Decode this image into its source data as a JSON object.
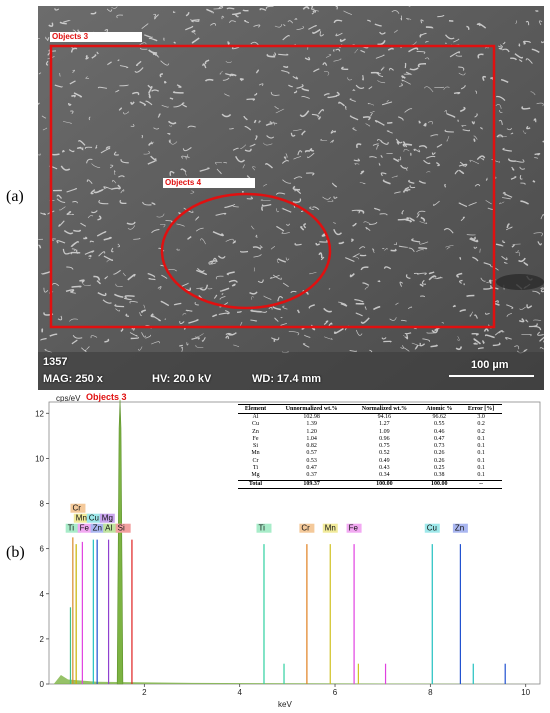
{
  "panel_a": {
    "label": "(a)",
    "regions": [
      {
        "name": "Objects 3",
        "shape": "rectangle"
      },
      {
        "name": "Objects 4",
        "shape": "ellipse"
      }
    ],
    "roi_color": "#e01010",
    "image_id": "1357",
    "mag": "MAG: 250 x",
    "hv": "HV: 20.0 kV",
    "wd": "WD: 17.4 mm",
    "scale_bar": "100 µm"
  },
  "panel_b": {
    "label": "(b)",
    "spectrum_title": "Objects 3",
    "table": {
      "headers": [
        "Element",
        "Unnormalized wt.%",
        "Normalized wt.%",
        "Atomic %",
        "Error [%]"
      ],
      "rows": [
        [
          "Al",
          "102.98",
          "94.16",
          "96.62",
          "3.0"
        ],
        [
          "Cu",
          "1.39",
          "1.27",
          "0.55",
          "0.2"
        ],
        [
          "Zn",
          "1.20",
          "1.09",
          "0.46",
          "0.2"
        ],
        [
          "Fe",
          "1.04",
          "0.96",
          "0.47",
          "0.1"
        ],
        [
          "Si",
          "0.82",
          "0.75",
          "0.73",
          "0.1"
        ],
        [
          "Mn",
          "0.57",
          "0.52",
          "0.26",
          "0.1"
        ],
        [
          "Cr",
          "0.53",
          "0.49",
          "0.26",
          "0.1"
        ],
        [
          "Ti",
          "0.47",
          "0.43",
          "0.25",
          "0.1"
        ],
        [
          "Mg",
          "0.37",
          "0.34",
          "0.38",
          "0.1"
        ]
      ],
      "total": [
        "Total",
        "109.37",
        "100.00",
        "100.00",
        "--"
      ]
    }
  },
  "chart_data": {
    "type": "line",
    "title": "Objects 3",
    "ylabel": "cps/eV",
    "xlabel": "keV",
    "xlim": [
      0,
      10.3
    ],
    "ylim": [
      0,
      12.5
    ],
    "x_ticks": [
      2,
      4,
      6,
      8,
      10
    ],
    "y_ticks": [
      0,
      2,
      4,
      6,
      8,
      10,
      12
    ],
    "spectrum_color": "#7cb342",
    "peaks": [
      {
        "keV": 0.45,
        "height": 3.4,
        "color": "#3fbf8a"
      },
      {
        "keV": 0.5,
        "height": 6.5,
        "color": "#d88a2a"
      },
      {
        "keV": 0.57,
        "height": 6.2,
        "color": "#c8b400"
      },
      {
        "keV": 0.7,
        "height": 6.3,
        "color": "#e040e0"
      },
      {
        "keV": 0.93,
        "height": 6.4,
        "color": "#20c0c0"
      },
      {
        "keV": 1.01,
        "height": 6.4,
        "color": "#2050d0"
      },
      {
        "keV": 1.25,
        "height": 6.4,
        "color": "#9040d0"
      },
      {
        "keV": 1.74,
        "height": 6.4,
        "color": "#e02020"
      },
      {
        "keV": 4.51,
        "height": 6.2,
        "color": "#30d0a0"
      },
      {
        "keV": 4.93,
        "height": 0.9,
        "color": "#30d0a0"
      },
      {
        "keV": 5.41,
        "height": 6.2,
        "color": "#e08020"
      },
      {
        "keV": 5.9,
        "height": 6.2,
        "color": "#d0c020"
      },
      {
        "keV": 6.4,
        "height": 6.2,
        "color": "#e040e0"
      },
      {
        "keV": 6.49,
        "height": 0.9,
        "color": "#d0c020"
      },
      {
        "keV": 7.06,
        "height": 0.9,
        "color": "#e040e0"
      },
      {
        "keV": 8.04,
        "height": 6.2,
        "color": "#20c0c0"
      },
      {
        "keV": 8.63,
        "height": 6.2,
        "color": "#2050d0"
      },
      {
        "keV": 8.9,
        "height": 0.9,
        "color": "#20c0c0"
      },
      {
        "keV": 9.57,
        "height": 0.9,
        "color": "#2050d0"
      }
    ],
    "main_peak": {
      "element": "Al",
      "keV": 1.49,
      "height": 12.6
    },
    "peak_labels": [
      {
        "element": "Cr",
        "keV": 0.5,
        "row": 2,
        "color": "#f4c99a"
      },
      {
        "element": "Mn",
        "keV": 0.64,
        "row": 1,
        "color": "#f1ea9a"
      },
      {
        "element": "Cu",
        "keV": 0.93,
        "row": 1,
        "color": "#9ee8ea"
      },
      {
        "element": "Mg",
        "keV": 1.25,
        "row": 1,
        "color": "#c9a4ee"
      },
      {
        "element": "Ti",
        "keV": 0.45,
        "row": 0,
        "color": "#a8ecc9"
      },
      {
        "element": "Fe",
        "keV": 0.71,
        "row": 0,
        "color": "#f2a9f2"
      },
      {
        "element": "Zn",
        "keV": 1.01,
        "row": 0,
        "color": "#a9b6f0"
      },
      {
        "element": "Al",
        "keV": 1.49,
        "row": 0,
        "color": "#bfe39e"
      },
      {
        "element": "Si",
        "keV": 1.74,
        "row": 0,
        "color": "#f2a0a0"
      },
      {
        "element": "Ti",
        "keV": 4.51,
        "row": 0,
        "color": "#a8ecc9"
      },
      {
        "element": "Cr",
        "keV": 5.41,
        "row": 0,
        "color": "#f4c99a"
      },
      {
        "element": "Mn",
        "keV": 5.9,
        "row": 0,
        "color": "#f1ea9a"
      },
      {
        "element": "Fe",
        "keV": 6.4,
        "row": 0,
        "color": "#f2a9f2"
      },
      {
        "element": "Cu",
        "keV": 8.04,
        "row": 0,
        "color": "#9ee8ea"
      },
      {
        "element": "Zn",
        "keV": 8.63,
        "row": 0,
        "color": "#a9b6f0"
      }
    ]
  }
}
